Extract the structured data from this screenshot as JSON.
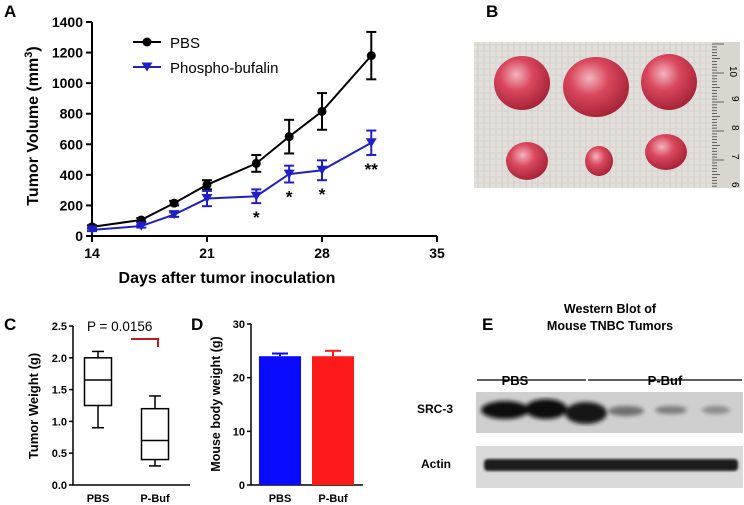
{
  "panels": {
    "A": "A",
    "B": "B",
    "C": "C",
    "D": "D",
    "E": "E"
  },
  "chart_data": [
    {
      "panel": "A",
      "type": "line",
      "xlabel": "Days after tumor inoculation",
      "ylabel": "Tumor Volume (mm",
      "ylabel_sup": "3",
      "ylabel_end": ")",
      "xlim": [
        14,
        35
      ],
      "ylim": [
        0,
        1400
      ],
      "xticks": [
        14,
        21,
        28,
        35
      ],
      "yticks": [
        0,
        200,
        400,
        600,
        800,
        1000,
        1200,
        1400
      ],
      "series": [
        {
          "name": "PBS",
          "color": "#000000",
          "marker": "circle",
          "x": [
            14,
            17,
            19,
            21,
            24,
            26,
            28,
            31
          ],
          "y": [
            60,
            105,
            215,
            335,
            475,
            650,
            815,
            1180
          ],
          "err": [
            10,
            12,
            15,
            30,
            55,
            110,
            120,
            155
          ]
        },
        {
          "name": "Phospho-bufalin",
          "color": "#1f1fc8",
          "marker": "triangle-down",
          "x": [
            14,
            17,
            19,
            21,
            24,
            26,
            28,
            31
          ],
          "y": [
            40,
            65,
            140,
            245,
            260,
            405,
            430,
            610
          ],
          "err": [
            8,
            10,
            15,
            50,
            45,
            55,
            65,
            80
          ]
        }
      ],
      "annotations": [
        {
          "x": 24,
          "text": "*"
        },
        {
          "x": 26,
          "text": "*"
        },
        {
          "x": 28,
          "text": "*"
        },
        {
          "x": 31,
          "text": "**"
        }
      ],
      "legend": "top-left"
    },
    {
      "panel": "C",
      "type": "box",
      "ylabel": "Tumor Weight (g)",
      "ylim": [
        0,
        2.5
      ],
      "yticks": [
        "0.0",
        "0.5",
        "1.0",
        "1.5",
        "2.0",
        "2.5"
      ],
      "categories": [
        "PBS",
        "P-Buf"
      ],
      "boxes": [
        {
          "min": 0.9,
          "q1": 1.25,
          "median": 1.65,
          "q3": 2.0,
          "max": 2.1
        },
        {
          "min": 0.3,
          "q1": 0.4,
          "median": 0.7,
          "q3": 1.2,
          "max": 1.4
        }
      ],
      "annotation": "P = 0.0156"
    },
    {
      "panel": "D",
      "type": "bar",
      "ylabel": "Mouse body weight (g)",
      "ylim": [
        0,
        30
      ],
      "yticks": [
        "0",
        "10",
        "20",
        "30"
      ],
      "categories": [
        "PBS",
        "P-Buf"
      ],
      "values": [
        24,
        24
      ],
      "err": [
        0.5,
        1.0
      ],
      "colors": [
        "#0a0aff",
        "#ff1a1a"
      ]
    }
  ],
  "photo": {
    "ruler_marks": [
      "10",
      "9",
      "8",
      "7",
      "6"
    ],
    "colors": {
      "gauze": "#e3e0dc",
      "tumor": "#c8364d",
      "tumor_light": "#f0a3b0",
      "ruler": "#d9d6cf"
    }
  },
  "western": {
    "title_line1": "Western Blot of",
    "title_line2": "Mouse TNBC Tumors",
    "group1": "PBS",
    "group2": "P-Buf",
    "row1": "SRC-3",
    "row2": "Actin"
  }
}
